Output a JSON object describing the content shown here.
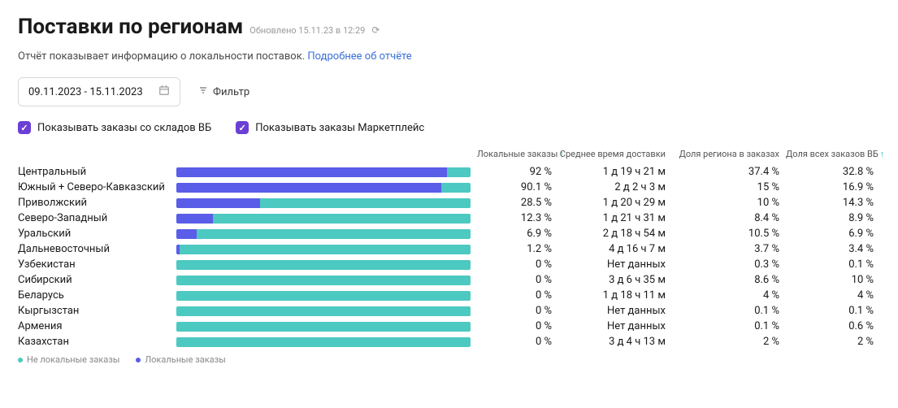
{
  "header": {
    "title": "Поставки по регионам",
    "updated": "Обновлено 15.11.23 в 12:29",
    "subtitle_text": "Отчёт показывает информацию о локальности поставок.",
    "subtitle_link": "Подробнее об отчёте"
  },
  "controls": {
    "date_range": "09.11.2023 - 15.11.2023",
    "filter_label": "Фильтр"
  },
  "checkboxes": {
    "wb_label": "Показывать заказы со складов ВБ",
    "mp_label": "Показывать заказы Маркетплейс",
    "checked_color": "#6b3fd4"
  },
  "columns": {
    "local_orders": "Локальные заказы",
    "avg_delivery": "Среднее время доставки",
    "region_share": "Доля региона в заказах",
    "wb_share": "Доля всех заказов ВБ"
  },
  "colors": {
    "bar_nonlocal": "#4cc9c1",
    "bar_local": "#5a5de8",
    "sort_arrow": "#35c6c0",
    "border": "#d8d8dc",
    "muted": "#9a9a9a",
    "link": "#3a6fd8"
  },
  "legend": {
    "nonlocal": "Не локальные заказы",
    "local": "Локальные заказы"
  },
  "rows": [
    {
      "region": "Центральный",
      "local_pct": 92,
      "local_pct_label": "92 %",
      "delivery": "1 д 19 ч 21 м",
      "region_share": "37.4 %",
      "wb_share": "32.8 %"
    },
    {
      "region": "Южный + Северо-Кавказский",
      "local_pct": 90.1,
      "local_pct_label": "90.1 %",
      "delivery": "2 д 2 ч 3 м",
      "region_share": "15 %",
      "wb_share": "16.9 %"
    },
    {
      "region": "Приволжский",
      "local_pct": 28.5,
      "local_pct_label": "28.5 %",
      "delivery": "1 д 20 ч 29 м",
      "region_share": "10 %",
      "wb_share": "14.3 %"
    },
    {
      "region": "Северо-Западный",
      "local_pct": 12.3,
      "local_pct_label": "12.3 %",
      "delivery": "1 д 21 ч 31 м",
      "region_share": "8.4 %",
      "wb_share": "8.9 %"
    },
    {
      "region": "Уральский",
      "local_pct": 6.9,
      "local_pct_label": "6.9 %",
      "delivery": "2 д 18 ч 54 м",
      "region_share": "10.5 %",
      "wb_share": "6.9 %"
    },
    {
      "region": "Дальневосточный",
      "local_pct": 1.2,
      "local_pct_label": "1.2 %",
      "delivery": "4 д 16 ч 7 м",
      "region_share": "3.7 %",
      "wb_share": "3.4 %"
    },
    {
      "region": "Узбекистан",
      "local_pct": 0,
      "local_pct_label": "0 %",
      "delivery": "Нет данных",
      "region_share": "0.3 %",
      "wb_share": "0.1 %"
    },
    {
      "region": "Сибирский",
      "local_pct": 0,
      "local_pct_label": "0 %",
      "delivery": "3 д 6 ч 35 м",
      "region_share": "8.6 %",
      "wb_share": "10 %"
    },
    {
      "region": "Беларусь",
      "local_pct": 0,
      "local_pct_label": "0 %",
      "delivery": "1 д 18 ч 11 м",
      "region_share": "4 %",
      "wb_share": "4 %"
    },
    {
      "region": "Кыргызстан",
      "local_pct": 0,
      "local_pct_label": "0 %",
      "delivery": "Нет данных",
      "region_share": "0.1 %",
      "wb_share": "0.1 %"
    },
    {
      "region": "Армения",
      "local_pct": 0,
      "local_pct_label": "0 %",
      "delivery": "Нет данных",
      "region_share": "0.1 %",
      "wb_share": "0.6 %"
    },
    {
      "region": "Казахстан",
      "local_pct": 0,
      "local_pct_label": "0 %",
      "delivery": "3 д 4 ч 13 м",
      "region_share": "2 %",
      "wb_share": "2 %"
    }
  ]
}
